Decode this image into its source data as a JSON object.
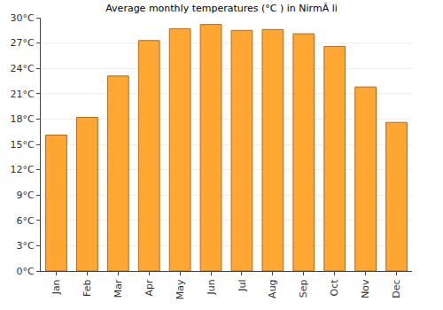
{
  "chart_data": {
    "type": "bar",
    "title": "Average monthly temperatures (°C ) in NirmÃ li",
    "categories": [
      "Jan",
      "Feb",
      "Mar",
      "Apr",
      "May",
      "Jun",
      "Jul",
      "Aug",
      "Sep",
      "Oct",
      "Nov",
      "Dec"
    ],
    "values": [
      16.1,
      18.2,
      23.1,
      27.3,
      28.7,
      29.2,
      28.5,
      28.6,
      28.1,
      26.6,
      21.8,
      17.6
    ],
    "color": "#ffa633",
    "ylim": [
      0,
      30
    ],
    "yticks": [
      {
        "value": 0,
        "label": "0°C"
      },
      {
        "value": 3,
        "label": "3°C"
      },
      {
        "value": 6,
        "label": "6°C"
      },
      {
        "value": 9,
        "label": "9°C"
      },
      {
        "value": 12,
        "label": "12°C"
      },
      {
        "value": 15,
        "label": "15°C"
      },
      {
        "value": 18,
        "label": "18°C"
      },
      {
        "value": 21,
        "label": "21°C"
      },
      {
        "value": 24,
        "label": "24°C"
      },
      {
        "value": 27,
        "label": "27°C"
      },
      {
        "value": 30,
        "label": "30°C"
      }
    ],
    "grid": true
  }
}
